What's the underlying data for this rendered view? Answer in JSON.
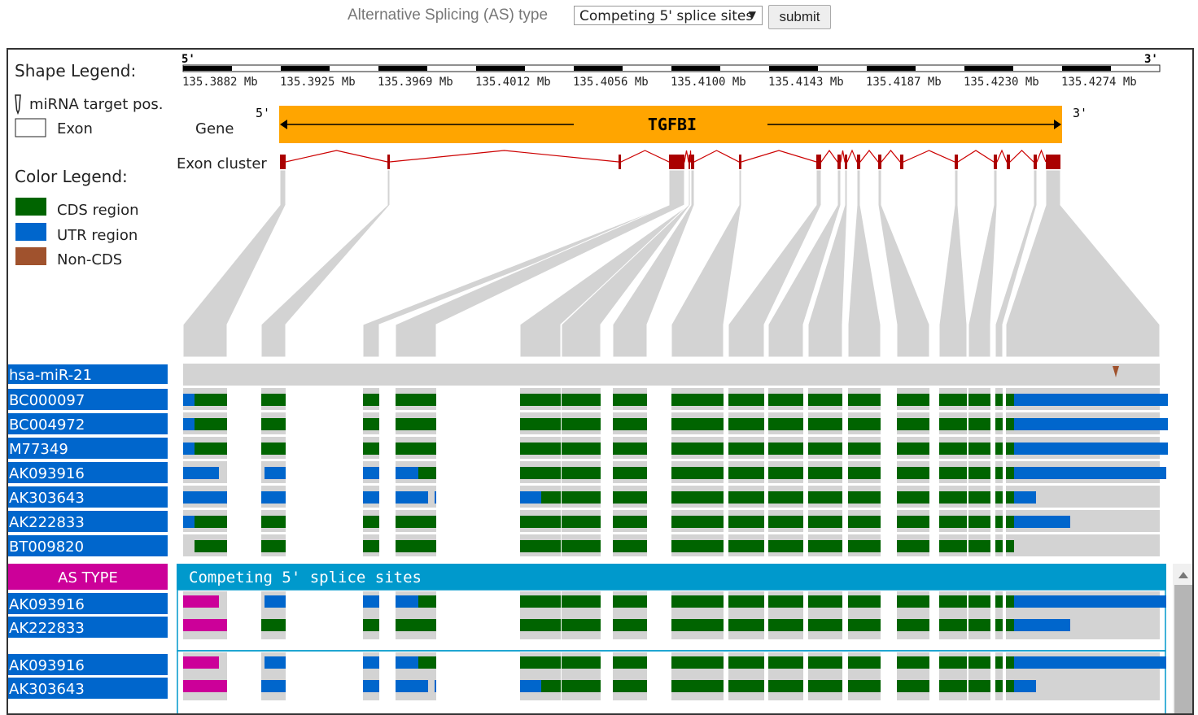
{
  "toolbar": {
    "as_label": "Alternative Splicing (AS) type",
    "as_selected": "Competing 5' splice sites",
    "submit_label": "submit"
  },
  "legend": {
    "shape_title": "Shape Legend:",
    "mirna_label": "miRNA target pos.",
    "exon_label": "Exon",
    "color_title": "Color Legend:",
    "cds_label": "CDS region",
    "utr_label": "UTR region",
    "noncds_label": "Non-CDS"
  },
  "colors": {
    "cds": "#006400",
    "utr": "#0066cc",
    "noncds": "#a0522d",
    "gene": "#ffa500",
    "exon_cluster": "#aa0000",
    "as_bar": "#0099cc",
    "highlight": "#cc0099",
    "grey": "#d3d3d3"
  },
  "ruler": {
    "five_prime": "5'",
    "three_prime": "3'",
    "ticks": [
      "135.3882 Mb",
      "135.3925 Mb",
      "135.3969 Mb",
      "135.4012 Mb",
      "135.4056 Mb",
      "135.4100 Mb",
      "135.4143 Mb",
      "135.4187 Mb",
      "135.4230 Mb",
      "135.4274 Mb"
    ]
  },
  "gene": {
    "row_label": "Gene",
    "name": "TGFBI",
    "five_prime": "5'",
    "three_prime": "3'",
    "cluster_label": "Exon cluster"
  },
  "tracks": [
    {
      "name": "hsa-miR-21",
      "type": "mirna"
    },
    {
      "name": "BC000097",
      "type": "transcript"
    },
    {
      "name": "BC004972",
      "type": "transcript"
    },
    {
      "name": "M77349",
      "type": "transcript"
    },
    {
      "name": "AK093916",
      "type": "transcript"
    },
    {
      "name": "AK303643",
      "type": "transcript"
    },
    {
      "name": "AK222833",
      "type": "transcript"
    },
    {
      "name": "BT009820",
      "type": "transcript"
    }
  ],
  "as_section": {
    "type_label": "AS TYPE",
    "type_value": "Competing 5' splice sites",
    "groups": [
      [
        "AK093916",
        "AK222833"
      ],
      [
        "AK093916",
        "AK303643"
      ]
    ]
  }
}
